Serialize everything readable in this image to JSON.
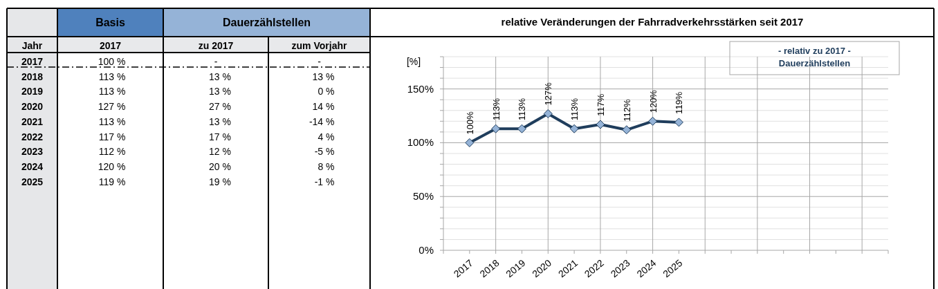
{
  "chart_data": [
    {
      "type": "heatmap",
      "annotations": [
        "Basis",
        "Dauerzählstellen",
        "Jahr"
      ],
      "categories": [
        "2017",
        "zu 2017",
        "zum Vorjahr"
      ],
      "y_categories": [
        "2017",
        "2018",
        "2019",
        "2020",
        "2021",
        "2022",
        "2023",
        "2024",
        "2025"
      ],
      "cells": [
        [
          100,
          null,
          null
        ],
        [
          113,
          13,
          13
        ],
        [
          113,
          13,
          0
        ],
        [
          127,
          27,
          14
        ],
        [
          113,
          13,
          -14
        ],
        [
          117,
          17,
          4
        ],
        [
          112,
          12,
          -5
        ],
        [
          120,
          20,
          8
        ],
        [
          119,
          19,
          -1
        ]
      ],
      "cell_labels": [
        [
          "100 %",
          "-",
          "-"
        ],
        [
          "113 %",
          "13 %",
          "13 %"
        ],
        [
          "113 %",
          "13 %",
          "0 %"
        ],
        [
          "127 %",
          "27 %",
          "14 %"
        ],
        [
          "113 %",
          "13 %",
          "-14 %"
        ],
        [
          "117 %",
          "17 %",
          "4 %"
        ],
        [
          "112 %",
          "12 %",
          "-5 %"
        ],
        [
          "120 %",
          "20 %",
          "8 %"
        ],
        [
          "119 %",
          "19 %",
          "-1 %"
        ]
      ]
    },
    {
      "type": "line",
      "title": "relative Veränderungen der Fahrradverkehrsstärken seit 2017",
      "ylabel": "[%]",
      "categories": [
        null,
        "2017",
        "2018",
        "2019",
        "2020",
        "2021",
        "2022",
        "2023",
        "2024",
        "2025",
        null,
        null,
        null,
        null,
        null,
        null,
        null,
        null
      ],
      "series": [
        {
          "name": "- relativ zu 2017 - Dauerzählstellen",
          "color": "#1f3d5c",
          "values": [
            null,
            100,
            113,
            113,
            127,
            113,
            117,
            112,
            120,
            119,
            null,
            null,
            null,
            null,
            null,
            null,
            null,
            null
          ],
          "value_labels": [
            null,
            "100%",
            "113%",
            "113%",
            "127%",
            "113%",
            "117%",
            "112%",
            "120%",
            "119%",
            null,
            null,
            null,
            null,
            null,
            null,
            null,
            null
          ]
        }
      ],
      "ylim": [
        0,
        180
      ],
      "yticks": [
        {
          "value": 0,
          "label": "0%"
        },
        {
          "value": 10,
          "label": null
        },
        {
          "value": 20,
          "label": null
        },
        {
          "value": 30,
          "label": null
        },
        {
          "value": 40,
          "label": null
        },
        {
          "value": 50,
          "label": "50%"
        },
        {
          "value": 60,
          "label": null
        },
        {
          "value": 70,
          "label": null
        },
        {
          "value": 80,
          "label": null
        },
        {
          "value": 90,
          "label": null
        },
        {
          "value": 100,
          "label": "100%"
        },
        {
          "value": 110,
          "label": null
        },
        {
          "value": 120,
          "label": null
        },
        {
          "value": 130,
          "label": null
        },
        {
          "value": 140,
          "label": null
        },
        {
          "value": 150,
          "label": "150%"
        },
        {
          "value": 160,
          "label": null
        },
        {
          "value": 170,
          "label": null
        },
        {
          "value": 180,
          "label": null
        }
      ],
      "grid": true,
      "legend": "top right",
      "marker": "diamond",
      "line_style": "solid"
    }
  ]
}
